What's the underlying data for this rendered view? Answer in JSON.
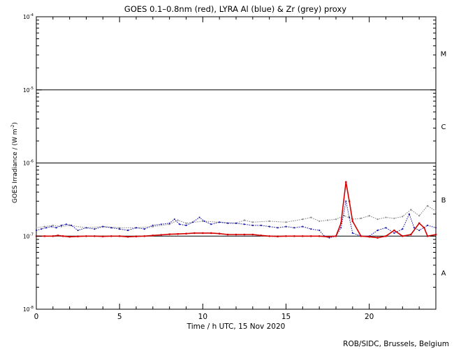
{
  "chart_data": {
    "type": "scatter",
    "title": "GOES 0.1–0.8nm (red), LYRA Al (blue) & Zr (grey) proxy",
    "xlabel": "Time / h UTC, 15 Nov 2020",
    "ylabel": "GOES Irradiance / (W m",
    "ylabel_sup": "-2",
    "ylabel_close": ")",
    "credit": "ROB/SIDC, Brussels, Belgium",
    "x_scale": "linear",
    "y_scale": "log",
    "xlim": [
      0,
      24
    ],
    "ylim": [
      1e-08,
      0.0001
    ],
    "x_ticks": [
      0,
      5,
      10,
      15,
      20
    ],
    "x_tick_labels": [
      "0",
      "5",
      "10",
      "15",
      "20"
    ],
    "y_ticks": [
      1e-08,
      1e-07,
      1e-06,
      1e-05,
      0.0001
    ],
    "y_tick_base": [
      "10",
      "10",
      "10",
      "10",
      "10"
    ],
    "y_tick_exp": [
      "-8",
      "-7",
      "-6",
      "-5",
      "-4"
    ],
    "flare_class_lines": [
      1e-07,
      1e-06,
      1e-05
    ],
    "flare_classes": [
      {
        "label": "M",
        "center": 3.16e-05
      },
      {
        "label": "C",
        "center": 3.16e-06
      },
      {
        "label": "B",
        "center": 3.16e-07
      },
      {
        "label": "A",
        "center": 3.16e-08
      }
    ],
    "series": [
      {
        "name": "GOES 0.1–0.8nm",
        "color": "#d40000",
        "x": [
          0.0,
          0.5,
          1.0,
          1.3,
          1.6,
          2.0,
          2.5,
          3.0,
          3.5,
          4.0,
          4.5,
          5.0,
          5.5,
          6.0,
          6.5,
          7.0,
          7.5,
          8.0,
          8.5,
          9.0,
          9.5,
          10.0,
          10.5,
          11.0,
          11.5,
          12.0,
          12.5,
          13.0,
          13.5,
          14.0,
          14.5,
          15.0,
          15.5,
          16.0,
          16.5,
          17.0,
          17.5,
          18.0,
          18.3,
          18.6,
          18.8,
          19.0,
          19.5,
          20.0,
          20.5,
          21.0,
          21.5,
          22.0,
          22.5,
          23.0,
          23.3,
          23.5,
          24.0
        ],
        "y": [
          1e-07,
          1e-07,
          1e-07,
          1.02e-07,
          1e-07,
          9.8e-08,
          9.9e-08,
          1e-07,
          1e-07,
          9.9e-08,
          1e-07,
          1e-07,
          9.8e-08,
          9.9e-08,
          1e-07,
          1.02e-07,
          1.04e-07,
          1.06e-07,
          1.07e-07,
          1.08e-07,
          1.1e-07,
          1.1e-07,
          1.1e-07,
          1.08e-07,
          1.05e-07,
          1.05e-07,
          1.05e-07,
          1.05e-07,
          1.02e-07,
          1e-07,
          9.9e-08,
          1e-07,
          1e-07,
          1e-07,
          1e-07,
          1e-07,
          9.8e-08,
          1e-07,
          1.5e-07,
          5.5e-07,
          3e-07,
          1.6e-07,
          1e-07,
          9.8e-08,
          9.5e-08,
          1e-07,
          1.2e-07,
          1e-07,
          1.05e-07,
          1.5e-07,
          1.3e-07,
          1e-07,
          1.05e-07
        ]
      },
      {
        "name": "LYRA Al",
        "color": "#1a1aaa",
        "x": [
          0.0,
          0.3,
          0.6,
          0.9,
          1.2,
          1.5,
          1.8,
          2.1,
          2.5,
          3.0,
          3.5,
          4.0,
          4.5,
          5.0,
          5.5,
          6.0,
          6.5,
          7.0,
          7.5,
          8.0,
          8.3,
          8.6,
          9.0,
          9.4,
          9.8,
          10.1,
          10.5,
          11.0,
          11.5,
          12.0,
          12.5,
          13.0,
          13.5,
          14.0,
          14.5,
          15.0,
          15.5,
          16.0,
          16.5,
          17.0,
          17.3,
          17.6,
          18.0,
          18.3,
          18.6,
          18.8,
          19.0,
          19.5,
          20.0,
          20.5,
          21.0,
          21.5,
          22.0,
          22.4,
          22.7,
          23.0,
          23.5,
          24.0
        ],
        "y": [
          1.2e-07,
          1.25e-07,
          1.3e-07,
          1.35e-07,
          1.3e-07,
          1.4e-07,
          1.45e-07,
          1.4e-07,
          1.2e-07,
          1.3e-07,
          1.25e-07,
          1.35e-07,
          1.3e-07,
          1.25e-07,
          1.2e-07,
          1.3e-07,
          1.25e-07,
          1.4e-07,
          1.45e-07,
          1.5e-07,
          1.7e-07,
          1.45e-07,
          1.4e-07,
          1.55e-07,
          1.8e-07,
          1.6e-07,
          1.45e-07,
          1.55e-07,
          1.5e-07,
          1.5e-07,
          1.45e-07,
          1.4e-07,
          1.4e-07,
          1.35e-07,
          1.3e-07,
          1.35e-07,
          1.3e-07,
          1.35e-07,
          1.25e-07,
          1.2e-07,
          1e-07,
          9.5e-08,
          1e-07,
          1.3e-07,
          3e-07,
          1.8e-07,
          1.1e-07,
          1e-07,
          1e-07,
          1.2e-07,
          1.3e-07,
          1.1e-07,
          1.25e-07,
          2e-07,
          1.3e-07,
          1.2e-07,
          1.4e-07,
          1.3e-07
        ]
      },
      {
        "name": "Zr proxy",
        "color": "#888888",
        "x": [
          0.0,
          0.5,
          1.0,
          1.5,
          2.0,
          3.0,
          4.0,
          5.0,
          6.0,
          7.0,
          8.0,
          8.5,
          9.0,
          10.0,
          11.0,
          12.0,
          12.5,
          13.0,
          14.0,
          15.0,
          16.0,
          16.5,
          17.0,
          17.5,
          18.0,
          18.5,
          19.0,
          19.5,
          20.0,
          20.5,
          21.0,
          21.5,
          22.0,
          22.5,
          23.0,
          23.5,
          24.0
        ],
        "y": [
          1.3e-07,
          1.35e-07,
          1.4e-07,
          1.35e-07,
          1.4e-07,
          1.3e-07,
          1.35e-07,
          1.3e-07,
          1.3e-07,
          1.35e-07,
          1.45e-07,
          1.65e-07,
          1.5e-07,
          1.6e-07,
          1.55e-07,
          1.5e-07,
          1.65e-07,
          1.55e-07,
          1.6e-07,
          1.55e-07,
          1.7e-07,
          1.8e-07,
          1.6e-07,
          1.65e-07,
          1.7e-07,
          1.9e-07,
          1.7e-07,
          1.75e-07,
          1.9e-07,
          1.7e-07,
          1.8e-07,
          1.75e-07,
          1.85e-07,
          2.3e-07,
          1.9e-07,
          2.6e-07,
          2.2e-07
        ]
      }
    ],
    "grid": false,
    "legend": "none"
  }
}
